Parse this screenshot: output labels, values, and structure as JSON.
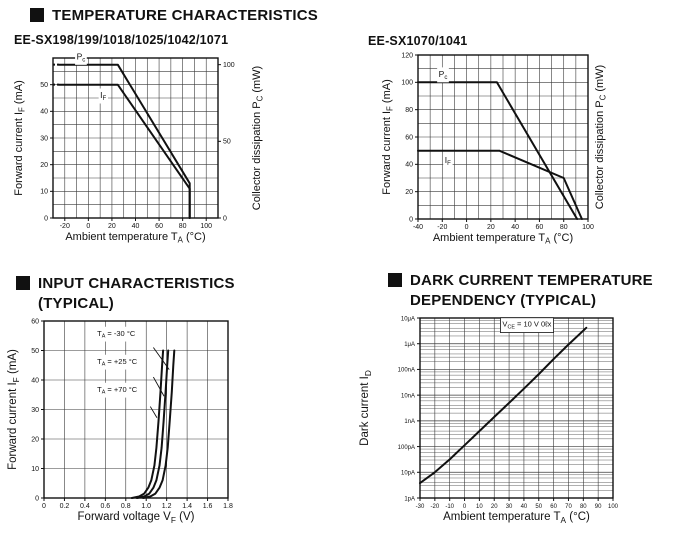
{
  "page": {
    "section1": {
      "title": "TEMPERATURE CHARACTERISTICS"
    },
    "section2": {
      "title_line1": "INPUT CHARACTERISTICS",
      "title_line2": "(TYPICAL)"
    },
    "section3": {
      "title_line1": "DARK CURRENT TEMPERATURE",
      "title_line2": "DEPENDENCY (TYPICAL)"
    }
  },
  "colors": {
    "ink": "#111111",
    "grid": "#3a3a3a",
    "background": "#ffffff"
  },
  "chart_data": [
    {
      "type": "line",
      "title": "EE-SX198/199/1018/1025/1042/1071",
      "xlabel_parts": [
        [
          "Ambient temperature T"
        ],
        [
          "A",
          "sub"
        ],
        [
          " (°C)"
        ]
      ],
      "ylabel_parts": [
        [
          "Forward current  I"
        ],
        [
          "F",
          "sub"
        ],
        [
          " (mA)"
        ]
      ],
      "ylabel_right_parts": [
        [
          "Collector dissipation P"
        ],
        [
          "C",
          "sub"
        ],
        [
          " (mW)"
        ]
      ],
      "xlim": [
        -30,
        110
      ],
      "xgrid": 10,
      "xticks": [
        [
          -20,
          "-20"
        ],
        [
          0,
          "0"
        ],
        [
          20,
          "20"
        ],
        [
          40,
          "40"
        ],
        [
          60,
          "60"
        ],
        [
          80,
          "80"
        ],
        [
          100,
          "100"
        ]
      ],
      "ylim": [
        0,
        60
      ],
      "ygrid": 5,
      "yticks": [
        [
          0,
          "0"
        ],
        [
          10,
          "10"
        ],
        [
          20,
          "20"
        ],
        [
          30,
          "30"
        ],
        [
          40,
          "40"
        ],
        [
          50,
          "50"
        ]
      ],
      "yticks_right": [
        [
          0,
          "0"
        ],
        [
          28.75,
          "50"
        ],
        [
          57.5,
          "100"
        ]
      ],
      "grid": true,
      "series": [
        {
          "name": "Pc",
          "label_parts": [
            [
              "P"
            ],
            [
              "c",
              "sub"
            ]
          ],
          "label_pos": [
            -10,
            59.5
          ],
          "dash_lead": [
            [
              -30,
              57.5
            ],
            [
              -25,
              57.5
            ]
          ],
          "points": [
            [
              -25,
              57.5
            ],
            [
              25,
              57.5
            ],
            [
              86,
              13
            ],
            [
              86,
              0
            ]
          ]
        },
        {
          "name": "IF",
          "label_parts": [
            [
              "I"
            ],
            [
              "F",
              "sub"
            ]
          ],
          "label_pos": [
            10,
            45
          ],
          "dash_lead": [
            [
              -30,
              50
            ],
            [
              -25,
              50
            ]
          ],
          "points": [
            [
              -25,
              50
            ],
            [
              25,
              50
            ],
            [
              86,
              11
            ],
            [
              86,
              0
            ]
          ]
        }
      ]
    },
    {
      "type": "line",
      "title": "EE-SX1070/1041",
      "xlabel_parts": [
        [
          "Ambient temperature T"
        ],
        [
          "A",
          "sub"
        ],
        [
          " (°C)"
        ]
      ],
      "ylabel_parts": [
        [
          "Forward current  I"
        ],
        [
          "F",
          "sub"
        ],
        [
          " (mA)"
        ]
      ],
      "ylabel_right_parts": [
        [
          "Collector dissipation P"
        ],
        [
          "C",
          "sub"
        ],
        [
          " (mW)"
        ]
      ],
      "xlim": [
        -40,
        100
      ],
      "xgrid": 10,
      "xticks": [
        [
          -40,
          "-40"
        ],
        [
          -20,
          "-20"
        ],
        [
          0,
          "0"
        ],
        [
          20,
          "20"
        ],
        [
          40,
          "40"
        ],
        [
          60,
          "60"
        ],
        [
          80,
          "80"
        ],
        [
          100,
          "100"
        ]
      ],
      "ylim": [
        0,
        120
      ],
      "ygrid": 10,
      "yticks": [
        [
          0,
          "0"
        ],
        [
          20,
          "20"
        ],
        [
          40,
          "40"
        ],
        [
          60,
          "60"
        ],
        [
          80,
          "80"
        ],
        [
          100,
          "100"
        ],
        [
          120,
          "120"
        ]
      ],
      "yticks_right": [],
      "grid": true,
      "series": [
        {
          "name": "Pc",
          "label_parts": [
            [
              "P"
            ],
            [
              "c",
              "sub"
            ]
          ],
          "label_pos": [
            -23,
            104
          ],
          "points": [
            [
              -40,
              100
            ],
            [
              25,
              100
            ],
            [
              91,
              0
            ]
          ]
        },
        {
          "name": "IF",
          "label_parts": [
            [
              "I"
            ],
            [
              "F",
              "sub"
            ]
          ],
          "label_pos": [
            -18,
            41
          ],
          "points": [
            [
              -40,
              50
            ],
            [
              27,
              50
            ],
            [
              80,
              30
            ],
            [
              95,
              0
            ]
          ]
        }
      ]
    },
    {
      "type": "line",
      "title": "",
      "xlabel_parts": [
        [
          "Forward voltage V"
        ],
        [
          "F",
          "sub"
        ],
        [
          " (V)"
        ]
      ],
      "ylabel_parts": [
        [
          "Forward current  I"
        ],
        [
          "F",
          "sub"
        ],
        [
          " (mA)"
        ]
      ],
      "xlim": [
        0,
        1.8
      ],
      "xgrid": 0.2,
      "xticks": [
        [
          0,
          "0"
        ],
        [
          0.2,
          "0.2"
        ],
        [
          0.4,
          "0.4"
        ],
        [
          0.6,
          "0.6"
        ],
        [
          0.8,
          "0.8"
        ],
        [
          1.0,
          "1.0"
        ],
        [
          1.2,
          "1.2"
        ],
        [
          1.4,
          "1.4"
        ],
        [
          1.6,
          "1.6"
        ],
        [
          1.8,
          "1.8"
        ]
      ],
      "ylim": [
        0,
        60
      ],
      "ygrid": 10,
      "yticks": [
        [
          0,
          "0"
        ],
        [
          10,
          "10"
        ],
        [
          20,
          "20"
        ],
        [
          30,
          "30"
        ],
        [
          40,
          "40"
        ],
        [
          50,
          "50"
        ],
        [
          60,
          "60"
        ]
      ],
      "grid": true,
      "series": [
        {
          "name": "TA-minus30",
          "points": [
            [
              0.97,
              0
            ],
            [
              1.04,
              0.5
            ],
            [
              1.09,
              1.5
            ],
            [
              1.13,
              3.5
            ],
            [
              1.16,
              6
            ],
            [
              1.19,
              11
            ],
            [
              1.21,
              17
            ],
            [
              1.23,
              26
            ],
            [
              1.25,
              36
            ],
            [
              1.265,
              45
            ],
            [
              1.275,
              50
            ]
          ]
        },
        {
          "name": "TA-plus25",
          "points": [
            [
              0.91,
              0
            ],
            [
              0.98,
              0.5
            ],
            [
              1.03,
              1.5
            ],
            [
              1.07,
              3.5
            ],
            [
              1.1,
              6
            ],
            [
              1.13,
              11
            ],
            [
              1.15,
              17
            ],
            [
              1.17,
              26
            ],
            [
              1.19,
              36
            ],
            [
              1.205,
              45
            ],
            [
              1.215,
              50
            ]
          ]
        },
        {
          "name": "TA-plus70",
          "points": [
            [
              0.86,
              0
            ],
            [
              0.93,
              0.5
            ],
            [
              0.98,
              1.5
            ],
            [
              1.02,
              3.5
            ],
            [
              1.05,
              6
            ],
            [
              1.08,
              11
            ],
            [
              1.1,
              17
            ],
            [
              1.12,
              26
            ],
            [
              1.14,
              36
            ],
            [
              1.155,
              45
            ],
            [
              1.165,
              50
            ]
          ]
        }
      ],
      "annotations": [
        {
          "parts": [
            [
              "T"
            ],
            [
              "A",
              "sub"
            ],
            [
              " = -30 °C"
            ]
          ],
          "pos": [
            0.52,
            55
          ],
          "arrow": [
            [
              1.07,
              51
            ],
            [
              1.225,
              43.5
            ]
          ]
        },
        {
          "parts": [
            [
              "T"
            ],
            [
              "A",
              "sub"
            ],
            [
              " = +25 °C"
            ]
          ],
          "pos": [
            0.52,
            45.5
          ],
          "arrow": [
            [
              1.07,
              41
            ],
            [
              1.175,
              34.5
            ]
          ]
        },
        {
          "parts": [
            [
              "T"
            ],
            [
              "A",
              "sub"
            ],
            [
              " = +70 °C"
            ]
          ],
          "pos": [
            0.52,
            36
          ],
          "arrow": [
            [
              1.04,
              31
            ],
            [
              1.105,
              27.2
            ]
          ]
        }
      ]
    },
    {
      "type": "line",
      "title": "",
      "xlabel_parts": [
        [
          "Ambient temperature T"
        ],
        [
          "A",
          "sub"
        ],
        [
          " (°C)"
        ]
      ],
      "ylabel_parts": [
        [
          "Dark current  I"
        ],
        [
          "D",
          "sub"
        ]
      ],
      "xlim": [
        -30,
        100
      ],
      "xgrid": 10,
      "xticks": [
        [
          -30,
          "-30"
        ],
        [
          -20,
          "-20"
        ],
        [
          -10,
          "-10"
        ],
        [
          0,
          "0"
        ],
        [
          10,
          "10"
        ],
        [
          20,
          "20"
        ],
        [
          30,
          "30"
        ],
        [
          40,
          "40"
        ],
        [
          50,
          "50"
        ],
        [
          60,
          "60"
        ],
        [
          70,
          "70"
        ],
        [
          80,
          "80"
        ],
        [
          90,
          "90"
        ],
        [
          100,
          "100"
        ]
      ],
      "yscale": "log",
      "ydecades": 7,
      "yticks": [
        [
          0,
          "1pA"
        ],
        [
          1,
          "10pA"
        ],
        [
          2,
          "100pA"
        ],
        [
          3,
          "1nA"
        ],
        [
          4,
          "10nA"
        ],
        [
          5,
          "100nA"
        ],
        [
          6,
          "1μA"
        ],
        [
          7,
          "10μA"
        ]
      ],
      "grid": true,
      "series": [
        {
          "name": "ID",
          "points": [
            [
              -30,
              0.58
            ],
            [
              -20,
              1.0
            ],
            [
              -10,
              1.5
            ],
            [
              0,
              2.05
            ],
            [
              10,
              2.6
            ],
            [
              20,
              3.15
            ],
            [
              30,
              3.7
            ],
            [
              40,
              4.25
            ],
            [
              50,
              4.82
            ],
            [
              60,
              5.4
            ],
            [
              70,
              5.97
            ],
            [
              82,
              6.62
            ]
          ]
        }
      ],
      "annotations": [
        {
          "parts": [
            [
              "V"
            ],
            [
              "CE",
              "sub"
            ],
            [
              " = 10 V 0ℓx"
            ]
          ],
          "pos": [
            42,
            6.66
          ],
          "anchor": "middle",
          "box": true
        }
      ]
    }
  ]
}
